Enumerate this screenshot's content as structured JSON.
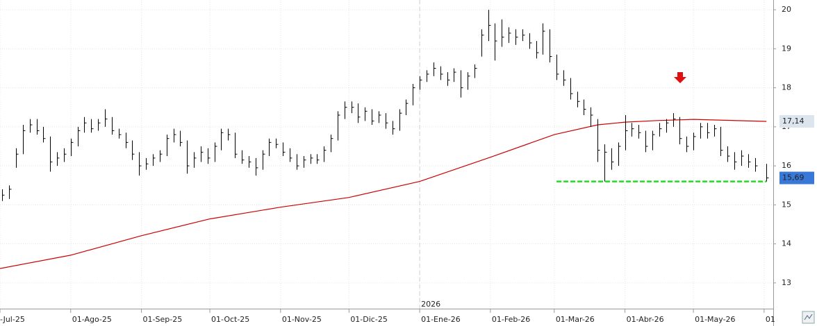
{
  "chart_data": {
    "type": "ohlc",
    "x": [
      "2025-07-02",
      "2025-07-05",
      "2025-07-08",
      "2025-07-11",
      "2025-07-14",
      "2025-07-17",
      "2025-07-20",
      "2025-07-23",
      "2025-07-26",
      "2025-07-29",
      "2025-08-01",
      "2025-08-04",
      "2025-08-07",
      "2025-08-10",
      "2025-08-13",
      "2025-08-16",
      "2025-08-19",
      "2025-08-22",
      "2025-08-25",
      "2025-08-28",
      "2025-08-31",
      "2025-09-03",
      "2025-09-06",
      "2025-09-09",
      "2025-09-12",
      "2025-09-15",
      "2025-09-18",
      "2025-09-21",
      "2025-09-24",
      "2025-09-27",
      "2025-09-30",
      "2025-10-03",
      "2025-10-06",
      "2025-10-09",
      "2025-10-12",
      "2025-10-15",
      "2025-10-18",
      "2025-10-21",
      "2025-10-24",
      "2025-10-27",
      "2025-10-30",
      "2025-11-02",
      "2025-11-05",
      "2025-11-08",
      "2025-11-11",
      "2025-11-14",
      "2025-11-17",
      "2025-11-20",
      "2025-11-23",
      "2025-11-26",
      "2025-11-29",
      "2025-12-02",
      "2025-12-05",
      "2025-12-08",
      "2025-12-11",
      "2025-12-14",
      "2025-12-17",
      "2025-12-20",
      "2025-12-23",
      "2025-12-26",
      "2025-12-29",
      "2026-01-01",
      "2026-01-04",
      "2026-01-07",
      "2026-01-10",
      "2026-01-13",
      "2026-01-16",
      "2026-01-19",
      "2026-01-22",
      "2026-01-25",
      "2026-01-28",
      "2026-01-31",
      "2026-02-03",
      "2026-02-06",
      "2026-02-09",
      "2026-02-12",
      "2026-02-15",
      "2026-02-18",
      "2026-02-21",
      "2026-02-24",
      "2026-02-27",
      "2026-03-02",
      "2026-03-05",
      "2026-03-08",
      "2026-03-11",
      "2026-03-14",
      "2026-03-17",
      "2026-03-20",
      "2026-03-23",
      "2026-03-26",
      "2026-03-29",
      "2026-04-01",
      "2026-04-04",
      "2026-04-07",
      "2026-04-10",
      "2026-04-13",
      "2026-04-16",
      "2026-04-19",
      "2026-04-22",
      "2026-04-25",
      "2026-04-28",
      "2026-05-01",
      "2026-05-04",
      "2026-05-07",
      "2026-05-10",
      "2026-05-13",
      "2026-05-16",
      "2026-05-19",
      "2026-05-22",
      "2026-05-25",
      "2026-05-28",
      "2026-06-02"
    ],
    "high": [
      15.4,
      15.5,
      16.45,
      17.05,
      17.2,
      17.2,
      17.0,
      16.75,
      16.35,
      16.45,
      16.7,
      17.0,
      17.25,
      17.2,
      17.2,
      17.45,
      17.25,
      16.95,
      16.85,
      16.65,
      16.35,
      16.2,
      16.3,
      16.4,
      16.8,
      16.95,
      16.9,
      16.65,
      16.35,
      16.5,
      16.45,
      16.6,
      16.95,
      16.95,
      16.85,
      16.4,
      16.25,
      16.2,
      16.4,
      16.7,
      16.7,
      16.6,
      16.45,
      16.3,
      16.25,
      16.3,
      16.3,
      16.5,
      16.8,
      17.4,
      17.65,
      17.65,
      17.6,
      17.5,
      17.45,
      17.4,
      17.35,
      17.15,
      17.45,
      17.7,
      18.1,
      18.3,
      18.45,
      18.65,
      18.55,
      18.4,
      18.5,
      18.45,
      18.4,
      18.6,
      19.5,
      20.0,
      19.65,
      19.75,
      19.55,
      19.5,
      19.5,
      19.4,
      19.2,
      19.65,
      19.5,
      18.85,
      18.45,
      18.25,
      17.9,
      17.7,
      17.5,
      17.2,
      16.55,
      16.45,
      16.6,
      17.3,
      17.1,
      17.05,
      16.9,
      16.9,
      17.1,
      17.2,
      17.35,
      17.25,
      16.75,
      16.85,
      17.1,
      17.1,
      17.05,
      17.0,
      16.5,
      16.35,
      16.4,
      16.3,
      16.2,
      16.05
    ],
    "low": [
      15.1,
      15.15,
      15.95,
      16.3,
      16.85,
      16.8,
      16.6,
      15.85,
      16.0,
      16.1,
      16.25,
      16.5,
      16.85,
      16.85,
      16.9,
      17.0,
      16.8,
      16.7,
      16.45,
      16.15,
      15.75,
      15.9,
      16.0,
      16.1,
      16.25,
      16.6,
      16.5,
      15.8,
      15.95,
      16.1,
      16.05,
      16.1,
      16.4,
      16.65,
      16.2,
      16.05,
      15.95,
      15.75,
      15.9,
      16.25,
      16.45,
      16.25,
      16.1,
      15.9,
      15.95,
      16.05,
      16.05,
      16.1,
      16.35,
      16.65,
      17.2,
      17.35,
      17.1,
      17.15,
      17.05,
      17.1,
      16.95,
      16.8,
      16.9,
      17.3,
      17.55,
      17.95,
      18.15,
      18.3,
      18.2,
      18.05,
      18.15,
      17.75,
      17.95,
      18.25,
      18.8,
      19.2,
      18.7,
      19.05,
      19.15,
      19.1,
      19.2,
      19.0,
      18.75,
      18.85,
      18.65,
      18.2,
      18.05,
      17.7,
      17.5,
      17.3,
      17.0,
      16.1,
      15.6,
      15.9,
      16.0,
      16.4,
      16.75,
      16.7,
      16.35,
      16.4,
      16.75,
      16.85,
      17.0,
      16.55,
      16.35,
      16.4,
      16.7,
      16.7,
      16.75,
      16.25,
      16.1,
      15.9,
      16.0,
      15.95,
      15.85,
      15.6
    ],
    "close": [
      15.25,
      15.4,
      16.3,
      16.9,
      17.05,
      16.9,
      16.7,
      16.1,
      16.2,
      16.3,
      16.6,
      16.9,
      17.1,
      16.95,
      17.1,
      17.2,
      16.9,
      16.8,
      16.6,
      16.3,
      16.0,
      16.05,
      16.2,
      16.3,
      16.7,
      16.8,
      16.6,
      16.0,
      16.2,
      16.35,
      16.2,
      16.5,
      16.85,
      16.8,
      16.3,
      16.15,
      16.1,
      15.95,
      16.3,
      16.6,
      16.55,
      16.35,
      16.2,
      16.0,
      16.15,
      16.2,
      16.15,
      16.4,
      16.7,
      17.3,
      17.5,
      17.5,
      17.25,
      17.4,
      17.15,
      17.3,
      17.1,
      16.95,
      17.35,
      17.6,
      18.0,
      18.2,
      18.35,
      18.5,
      18.35,
      18.2,
      18.4,
      18.0,
      18.3,
      18.5,
      19.35,
      19.6,
      19.2,
      19.3,
      19.4,
      19.3,
      19.35,
      19.15,
      18.9,
      19.45,
      18.8,
      18.35,
      18.2,
      17.85,
      17.65,
      17.45,
      17.3,
      16.4,
      16.35,
      16.1,
      16.5,
      16.9,
      16.95,
      16.85,
      16.5,
      16.8,
      16.95,
      17.1,
      17.2,
      16.7,
      16.5,
      16.75,
      17.0,
      16.85,
      16.95,
      16.4,
      16.25,
      16.1,
      16.25,
      16.1,
      16.0,
      15.69
    ],
    "color": "#000000",
    "ma": {
      "color": "#cc0000",
      "x": [
        "2025-07-01",
        "2025-08-01",
        "2025-09-01",
        "2025-10-01",
        "2025-11-01",
        "2025-12-01",
        "2026-01-01",
        "2026-02-01",
        "2026-03-01",
        "2026-03-20",
        "2026-04-01",
        "2026-04-15",
        "2026-05-01",
        "2026-06-02"
      ],
      "values": [
        13.37,
        13.71,
        14.21,
        14.64,
        14.94,
        15.19,
        15.6,
        16.22,
        16.8,
        17.05,
        17.12,
        17.16,
        17.19,
        17.14
      ]
    },
    "support": {
      "value": 15.6,
      "from": "2026-03-02",
      "to": "2026-06-02",
      "color": "#22dd22"
    },
    "price_tags": [
      {
        "value": 17.14,
        "label": "17,14",
        "color": "#dce4ee",
        "text_color": "#222222"
      },
      {
        "value": 15.69,
        "label": "15,69",
        "color": "#3a78d8",
        "text_color": "#ffffff"
      }
    ],
    "year_marker": {
      "x": "2026-01-01",
      "label": "2026"
    },
    "xlim": [
      "2025-07-01",
      "2026-06-05"
    ],
    "xticks": [
      {
        "value": "2025-07-01",
        "label": "-Jul-25"
      },
      {
        "value": "2025-08-01",
        "label": "01-Ago-25"
      },
      {
        "value": "2025-09-01",
        "label": "01-Sep-25"
      },
      {
        "value": "2025-10-01",
        "label": "01-Oct-25"
      },
      {
        "value": "2025-11-01",
        "label": "01-Nov-25"
      },
      {
        "value": "2025-12-01",
        "label": "01-Dic-25"
      },
      {
        "value": "2026-01-01",
        "label": "01-Ene-26"
      },
      {
        "value": "2026-02-01",
        "label": "01-Feb-26"
      },
      {
        "value": "2026-03-01",
        "label": "01-Mar-26"
      },
      {
        "value": "2026-04-01",
        "label": "01-Abr-26"
      },
      {
        "value": "2026-05-01",
        "label": "01-May-26"
      },
      {
        "value": "2026-06-01",
        "label": "01"
      }
    ],
    "ylim": [
      12.34,
      20.25
    ],
    "yticks": [
      13,
      14,
      15,
      16,
      17,
      18,
      19,
      20
    ],
    "grid": true
  }
}
